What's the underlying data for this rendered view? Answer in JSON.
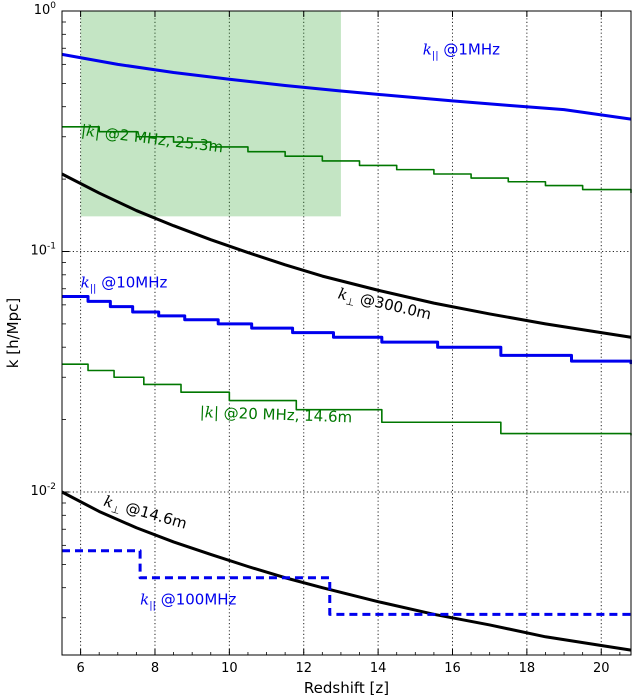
{
  "chart_data": {
    "type": "line",
    "title": "",
    "xlabel": "Redshift [z]",
    "ylabel": "k [h/Mpc]",
    "xlim": [
      5.5,
      20.8
    ],
    "ylim": [
      0.0021,
      1.0
    ],
    "yscale": "log",
    "grid": true,
    "x_ticks": [
      6,
      8,
      10,
      12,
      14,
      16,
      18,
      20
    ],
    "x_tick_labels": [
      "6",
      "8",
      "10",
      "12",
      "14",
      "16",
      "18",
      "20"
    ],
    "y_ticks": [
      {
        "value": 1.0,
        "base": "10",
        "exp": "0"
      },
      {
        "value": 0.1,
        "base": "10",
        "exp": "-1"
      },
      {
        "value": 0.01,
        "base": "10",
        "exp": "-2"
      }
    ],
    "shaded_region": {
      "x": [
        6,
        13
      ],
      "y": [
        0.14,
        1.0
      ],
      "color": "#2ca02c",
      "opacity": 0.28
    },
    "series": [
      {
        "label_main": "k",
        "label_sub": "||",
        "label_rest": " @1MHz",
        "color": "#0000ee",
        "style": "smooth",
        "dash": false,
        "width": 3,
        "x": [
          5.5,
          7,
          8.5,
          10,
          11.5,
          13,
          14.5,
          16,
          17.5,
          19,
          20.8
        ],
        "y": [
          0.66,
          0.6,
          0.555,
          0.52,
          0.49,
          0.465,
          0.443,
          0.423,
          0.405,
          0.389,
          0.355
        ],
        "label_pos": [
          15.2,
          0.66
        ],
        "label_rot": 0
      },
      {
        "label_main": "|k|",
        "label_rest": " @2 MHz, 25.3m",
        "color": "#007700",
        "style": "step",
        "dash": false,
        "width": 1.6,
        "x": [
          5.5,
          6.5,
          7.5,
          8.5,
          9.5,
          10.5,
          11.5,
          12.5,
          13.5,
          14.5,
          15.5,
          16.5,
          17.5,
          18.5,
          19.5,
          20.8
        ],
        "y": [
          0.33,
          0.315,
          0.3,
          0.285,
          0.272,
          0.26,
          0.249,
          0.238,
          0.228,
          0.219,
          0.21,
          0.202,
          0.195,
          0.188,
          0.181,
          0.175
        ],
        "label_pos": [
          6.0,
          0.305
        ],
        "label_rot": 7
      },
      {
        "label_main": "k",
        "label_sub": "⊥",
        "label_rest": " @300.0m",
        "color": "#000000",
        "style": "smooth",
        "dash": false,
        "width": 3,
        "x": [
          5.5,
          6.5,
          7.5,
          8.5,
          9.5,
          10.5,
          11.5,
          12.5,
          14,
          15.5,
          17,
          18.5,
          20,
          20.8
        ],
        "y": [
          0.21,
          0.175,
          0.148,
          0.128,
          0.112,
          0.099,
          0.088,
          0.079,
          0.069,
          0.061,
          0.055,
          0.05,
          0.046,
          0.044
        ],
        "label_pos": [
          12.9,
          0.064
        ],
        "label_rot": 13
      },
      {
        "label_main": "k",
        "label_sub": "||",
        "label_rest": " @10MHz",
        "color": "#0000ee",
        "style": "step",
        "dash": false,
        "width": 3,
        "x": [
          5.5,
          6.2,
          6.8,
          7.4,
          8.1,
          8.8,
          9.7,
          10.6,
          11.7,
          12.8,
          14.1,
          15.6,
          17.3,
          19.2,
          20.8
        ],
        "y": [
          0.065,
          0.062,
          0.059,
          0.056,
          0.054,
          0.052,
          0.05,
          0.048,
          0.046,
          0.044,
          0.042,
          0.04,
          0.037,
          0.035,
          0.034
        ],
        "label_pos": [
          6.0,
          0.071
        ],
        "label_rot": 0
      },
      {
        "label_main": "|k|",
        "label_rest": " @20 MHz, 14.6m",
        "color": "#007700",
        "style": "step",
        "dash": false,
        "width": 1.6,
        "x": [
          5.5,
          6.2,
          6.9,
          7.7,
          8.7,
          10.0,
          11.8,
          14.1,
          17.3,
          20.8
        ],
        "y": [
          0.034,
          0.032,
          0.03,
          0.028,
          0.026,
          0.024,
          0.022,
          0.0195,
          0.0175,
          0.0172
        ],
        "label_pos": [
          9.2,
          0.0205
        ],
        "label_rot": 2
      },
      {
        "label_main": "k",
        "label_sub": "⊥",
        "label_rest": " @14.6m",
        "color": "#000000",
        "style": "smooth",
        "dash": false,
        "width": 3,
        "x": [
          5.5,
          6.5,
          7.5,
          8.5,
          9.5,
          10.5,
          11.5,
          12.5,
          14,
          15.5,
          17,
          18.5,
          20,
          20.8
        ],
        "y": [
          0.01,
          0.0083,
          0.0071,
          0.0062,
          0.0055,
          0.0049,
          0.0044,
          0.004,
          0.0035,
          0.0031,
          0.0028,
          0.0025,
          0.0023,
          0.0022
        ],
        "label_pos": [
          6.6,
          0.0088
        ],
        "label_rot": 16
      },
      {
        "label_main": "k",
        "label_sub": "||",
        "label_rest": " @100MHz",
        "color": "#0000ee",
        "style": "step",
        "dash": true,
        "width": 3,
        "x": [
          5.5,
          7.6,
          12.7,
          20.8
        ],
        "y": [
          0.0057,
          0.0044,
          0.0031,
          0.0031
        ],
        "label_pos": [
          7.6,
          0.0034
        ],
        "label_rot": 0
      }
    ]
  }
}
